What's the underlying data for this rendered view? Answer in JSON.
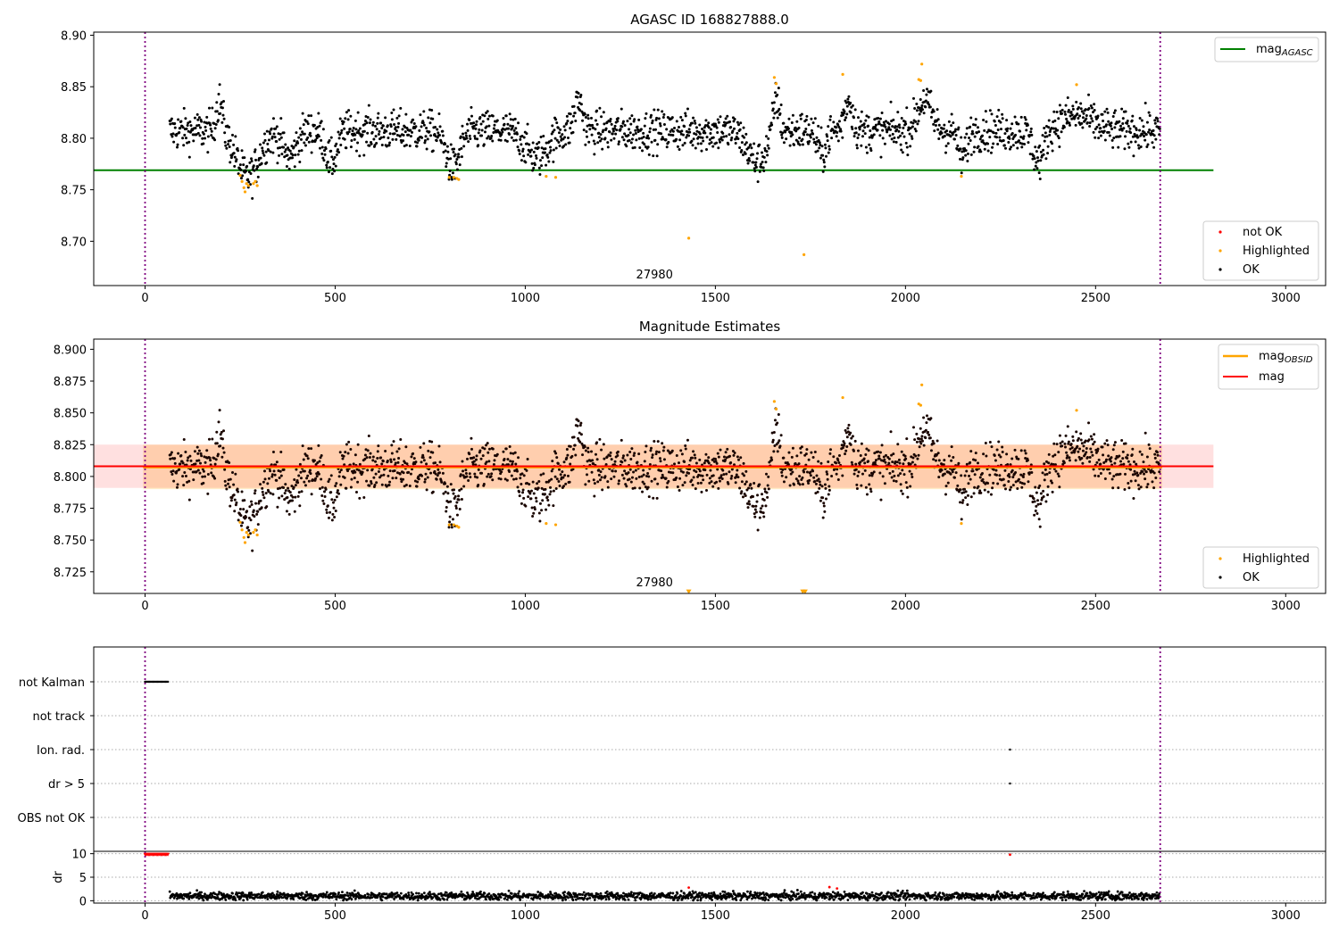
{
  "chart_data": [
    {
      "type": "scatter",
      "title": "AGASC ID 168827888.0",
      "xlim": [
        -135,
        3105
      ],
      "ylim": [
        8.657,
        8.903
      ],
      "xticks": [
        0,
        500,
        1000,
        1500,
        2000,
        2500,
        3000
      ],
      "yticks": [
        8.7,
        8.75,
        8.8,
        8.85,
        8.9
      ],
      "ytick_labels": [
        "8.70",
        "8.75",
        "8.80",
        "8.85",
        "8.90"
      ],
      "obsid_boundaries": [
        0,
        2670
      ],
      "obsid_label": "27980",
      "obsid_label_x": 1340,
      "reference_lines": [
        {
          "name": "mag_AGASC",
          "label_main": "mag",
          "label_sub": "AGASC",
          "y": 8.769,
          "x": [
            -135,
            2810
          ],
          "color": "#008000"
        }
      ],
      "legend_top": [
        {
          "label_main": "mag",
          "label_sub": "AGASC",
          "color": "#008000",
          "kind": "line"
        }
      ],
      "legend_bottom": [
        {
          "label": "not OK",
          "color": "#ff0000",
          "kind": "dot"
        },
        {
          "label": "Highlighted",
          "color": "#ffa500",
          "kind": "dot"
        },
        {
          "label": "OK",
          "color": "#000000",
          "kind": "dot"
        }
      ],
      "legend_top_placement": "top-right",
      "legend_bottom_placement": "lower-right",
      "series": [
        {
          "name": "OK",
          "color": "#000000",
          "x_range": [
            65,
            2670
          ],
          "baseline": 8.807,
          "noise": 0.012,
          "dips": [
            [
              270,
              0.045,
              40
            ],
            [
              380,
              0.025,
              25
            ],
            [
              490,
              0.03,
              20
            ],
            [
              810,
              0.035,
              25
            ],
            [
              1030,
              0.025,
              40
            ],
            [
              1610,
              0.03,
              35
            ],
            [
              1780,
              0.022,
              15
            ],
            [
              2150,
              0.025,
              15
            ],
            [
              2350,
              0.03,
              20
            ]
          ],
          "bumps": [
            [
              195,
              0.03,
              12
            ],
            [
              1140,
              0.03,
              15
            ],
            [
              1660,
              0.035,
              12
            ],
            [
              1850,
              0.03,
              15
            ],
            [
              2050,
              0.03,
              25
            ],
            [
              2450,
              0.015,
              60
            ]
          ]
        },
        {
          "name": "Highlighted",
          "color": "#ffa500",
          "points": [
            [
              250,
              8.764
            ],
            [
              255,
              8.758
            ],
            [
              260,
              8.752
            ],
            [
              263,
              8.748
            ],
            [
              267,
              8.756
            ],
            [
              272,
              8.754
            ],
            [
              285,
              8.756
            ],
            [
              290,
              8.758
            ],
            [
              295,
              8.754
            ],
            [
              800,
              8.762
            ],
            [
              812,
              8.762
            ],
            [
              820,
              8.761
            ],
            [
              825,
              8.76
            ],
            [
              1055,
              8.763
            ],
            [
              1080,
              8.762
            ],
            [
              1430,
              8.703
            ],
            [
              1655,
              8.859
            ],
            [
              1660,
              8.853
            ],
            [
              1733,
              8.687
            ],
            [
              1835,
              8.862
            ],
            [
              2035,
              8.857
            ],
            [
              2040,
              8.856
            ],
            [
              2043,
              8.872
            ],
            [
              2147,
              8.763
            ],
            [
              2450,
              8.852
            ]
          ]
        }
      ]
    },
    {
      "type": "scatter",
      "title": "Magnitude Estimates",
      "xlim": [
        -135,
        3105
      ],
      "ylim": [
        8.708,
        8.908
      ],
      "xticks": [
        0,
        500,
        1000,
        1500,
        2000,
        2500,
        3000
      ],
      "yticks": [
        8.725,
        8.75,
        8.775,
        8.8,
        8.825,
        8.85,
        8.875,
        8.9
      ],
      "ytick_labels": [
        "8.725",
        "8.750",
        "8.775",
        "8.800",
        "8.825",
        "8.850",
        "8.875",
        "8.900"
      ],
      "obsid_boundaries": [
        0,
        2670
      ],
      "obsid_label": "27980",
      "obsid_label_x": 1340,
      "reference_lines": [
        {
          "name": "mag_OBSID",
          "label_main": "mag",
          "label_sub": "OBSID",
          "y": 8.807,
          "x": [
            -5,
            2675
          ],
          "color": "#ffa500"
        },
        {
          "name": "mag",
          "label_main": "mag",
          "y": 8.808,
          "x": [
            -135,
            2810
          ],
          "color": "#ff0000"
        }
      ],
      "bands": [
        {
          "name": "mag_OBSID band",
          "y": [
            8.79,
            8.825
          ],
          "x": [
            -5,
            2675
          ],
          "color": "#ffa500"
        },
        {
          "name": "mag band",
          "y": [
            8.791,
            8.825
          ],
          "x": [
            -135,
            2810
          ],
          "color": "#ff0000"
        }
      ],
      "legend_top": [
        {
          "label_main": "mag",
          "label_sub": "OBSID",
          "color": "#ffa500",
          "kind": "line"
        },
        {
          "label_main": "mag",
          "color": "#ff0000",
          "kind": "line"
        }
      ],
      "legend_bottom": [
        {
          "label": "Highlighted",
          "color": "#ffa500",
          "kind": "dot"
        },
        {
          "label": "OK",
          "color": "#000000",
          "kind": "dot"
        }
      ],
      "legend_top_placement": "top-right",
      "legend_bottom_placement": "lower-right",
      "series": [
        {
          "name": "OK",
          "color": "#000000",
          "same_as_panel": 0
        },
        {
          "name": "Highlighted",
          "color": "#ffa500",
          "same_as_panel": 0,
          "offscale_markers": [
            [
              1430,
              8.709
            ],
            [
              1730,
              8.709
            ],
            [
              1736,
              8.709
            ]
          ]
        }
      ]
    },
    {
      "type": "scatter",
      "title": "",
      "xlim": [
        -135,
        3105
      ],
      "flag_rows": [
        "not Kalman",
        "not track",
        "Ion. rad.",
        "dr > 5",
        "OBS not OK"
      ],
      "obsid_boundaries": [
        0,
        2670
      ],
      "flags": [
        {
          "row": "not Kalman",
          "x_range": [
            0,
            60
          ],
          "step": 3,
          "color": "#000000"
        },
        {
          "row": "Ion. rad.",
          "x": [
            2275
          ],
          "color": "#000000"
        },
        {
          "row": "dr > 5",
          "x": [
            2275
          ],
          "color": "#000000"
        }
      ]
    },
    {
      "type": "scatter",
      "title": "",
      "xlim": [
        -135,
        3105
      ],
      "ylim": [
        -0.5,
        10.5
      ],
      "ylabel": "dr",
      "xticks": [
        0,
        500,
        1000,
        1500,
        2000,
        2500,
        3000
      ],
      "yticks": [
        0,
        5,
        10
      ],
      "ytick_labels": [
        "0",
        "5",
        "10"
      ],
      "obsid_boundaries": [
        0,
        2670
      ],
      "series": [
        {
          "name": "OK",
          "color": "#000000",
          "x_range": [
            65,
            2670
          ],
          "mean": 1.0,
          "spread": 0.6
        },
        {
          "name": "not OK",
          "color": "#ff0000",
          "x_range": [
            0,
            60
          ],
          "value": 9.8,
          "step": 3,
          "extra_points": [
            [
              2275,
              9.8
            ],
            [
              1430,
              2.8
            ],
            [
              1800,
              2.9
            ],
            [
              1820,
              2.6
            ]
          ]
        }
      ]
    }
  ]
}
